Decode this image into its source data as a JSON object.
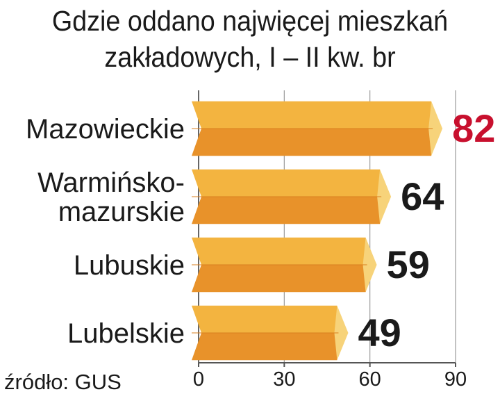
{
  "chart_data": {
    "type": "bar",
    "orientation": "horizontal",
    "title_lines": [
      "Gdzie oddano najwięcej mieszkań",
      "zakładowych, I – II kw. br"
    ],
    "categories": [
      [
        "Mazowieckie"
      ],
      [
        "Warmińsko-",
        "mazurskie"
      ],
      [
        "Lubuskie"
      ],
      [
        "Lubelskie"
      ]
    ],
    "values": [
      82,
      64,
      59,
      49
    ],
    "value_labels": [
      "82",
      "64",
      "59",
      "49"
    ],
    "value_label_colors": [
      "#c8102e",
      "#1a1a1a",
      "#1a1a1a",
      "#1a1a1a"
    ],
    "xlim": [
      0,
      90
    ],
    "xticks": [
      0,
      30,
      60,
      90
    ],
    "xtick_labels": [
      "0",
      "30",
      "60",
      "90"
    ],
    "grid": true,
    "bar_colors": {
      "top": "#f3b440",
      "bottom": "#e8922a",
      "cap": "#f7d37a"
    },
    "source": "źródło: GUS"
  }
}
